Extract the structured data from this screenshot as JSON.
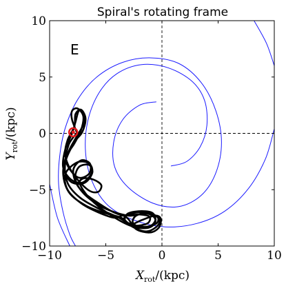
{
  "chart_data": {
    "type": "line",
    "title": "Spiral's rotating frame",
    "panel_label": "E",
    "xlabel": {
      "main": "X",
      "sub": "rot",
      "unit": "/(kpc)"
    },
    "ylabel": {
      "main": "Y",
      "sub": "rot",
      "unit": "/(kpc)"
    },
    "xlim": [
      -10,
      10
    ],
    "ylim": [
      -10,
      10
    ],
    "xticks": [
      -10,
      -5,
      0,
      5,
      10
    ],
    "yticks": [
      -10,
      -5,
      0,
      5,
      10
    ],
    "xtick_labels": [
      "−10",
      "−5",
      "0",
      "5",
      "10"
    ],
    "ytick_labels": [
      "−10",
      "−5",
      "0",
      "5",
      "10"
    ],
    "grid": false,
    "reference_lines": {
      "x": 0,
      "y": 0,
      "style": "dashed"
    },
    "colors": {
      "spiral": "#1a1aff",
      "orbit": "#000000",
      "marker": "#e41a1c"
    },
    "series": [
      {
        "kind": "spiral_arm",
        "points": [
          [
            -0.5,
            2.8
          ],
          [
            -2.0,
            2.5
          ],
          [
            -3.5,
            1.2
          ],
          [
            -4.3,
            -0.8
          ],
          [
            -4.2,
            -3.0
          ],
          [
            -3.0,
            -4.8
          ],
          [
            -0.8,
            -6.2
          ],
          [
            1.5,
            -6.5
          ],
          [
            3.5,
            -5.5
          ],
          [
            4.8,
            -3.5
          ],
          [
            5.3,
            -0.8
          ],
          [
            4.8,
            2.0
          ],
          [
            3.5,
            4.5
          ],
          [
            1.5,
            6.2
          ],
          [
            -1.0,
            6.7
          ],
          [
            -3.5,
            6.3
          ],
          [
            -5.8,
            5.0
          ],
          [
            -7.5,
            3.0
          ],
          [
            -8.6,
            0.5
          ],
          [
            -9.1,
            -2.0
          ],
          [
            -9.2,
            -4.5
          ],
          [
            -8.8,
            -7.0
          ],
          [
            -8.2,
            -9.0
          ],
          [
            -7.7,
            -10.0
          ]
        ]
      },
      {
        "kind": "spiral_arm",
        "points": [
          [
            0.8,
            -2.9
          ],
          [
            2.2,
            -2.5
          ],
          [
            3.4,
            -1.2
          ],
          [
            4.0,
            0.7
          ],
          [
            3.8,
            2.9
          ],
          [
            2.7,
            4.6
          ],
          [
            0.6,
            5.8
          ],
          [
            -1.8,
            6.1
          ],
          [
            -4.0,
            5.3
          ],
          [
            -5.6,
            3.6
          ],
          [
            -6.6,
            1.1
          ],
          [
            -6.8,
            -1.7
          ],
          [
            -6.2,
            -4.3
          ],
          [
            -4.8,
            -6.4
          ],
          [
            -2.5,
            -7.7
          ],
          [
            0.3,
            -8.3
          ],
          [
            3.1,
            -8.0
          ],
          [
            5.6,
            -6.9
          ],
          [
            7.7,
            -4.9
          ],
          [
            9.2,
            -2.3
          ],
          [
            10.0,
            0.4
          ]
        ]
      },
      {
        "kind": "spiral_arm",
        "points": [
          [
            8.2,
            10.0
          ],
          [
            9.3,
            8.0
          ],
          [
            10.0,
            6.0
          ]
        ]
      },
      {
        "kind": "spiral_arm",
        "points": [
          [
            -10.0,
            -4.5
          ],
          [
            -9.3,
            -7.5
          ],
          [
            -8.2,
            -10.0
          ]
        ]
      }
    ],
    "orbit": {
      "name": "",
      "path": [
        [
          -7.5,
          -0.1
        ],
        [
          -8.0,
          1.2
        ],
        [
          -8.0,
          2.0
        ],
        [
          -7.5,
          2.2
        ],
        [
          -7.0,
          1.5
        ],
        [
          -7.2,
          0.3
        ],
        [
          -7.8,
          -0.9
        ],
        [
          -8.5,
          -2.0
        ],
        [
          -8.7,
          -3.2
        ],
        [
          -8.1,
          -4.1
        ],
        [
          -7.2,
          -4.4
        ],
        [
          -6.5,
          -3.9
        ],
        [
          -6.2,
          -3.2
        ],
        [
          -6.6,
          -2.6
        ],
        [
          -7.6,
          -2.6
        ],
        [
          -8.6,
          -3.6
        ],
        [
          -8.4,
          -5.0
        ],
        [
          -7.2,
          -6.2
        ],
        [
          -5.7,
          -7.0
        ],
        [
          -4.2,
          -7.5
        ],
        [
          -3.5,
          -7.3
        ],
        [
          -3.0,
          -7.6
        ],
        [
          -2.3,
          -8.5
        ],
        [
          -1.1,
          -8.8
        ],
        [
          -0.3,
          -8.4
        ],
        [
          -0.1,
          -7.6
        ],
        [
          -0.6,
          -7.3
        ],
        [
          -1.8,
          -7.7
        ],
        [
          -2.8,
          -8.1
        ],
        [
          -3.3,
          -7.7
        ],
        [
          -3.0,
          -7.1
        ],
        [
          -1.8,
          -6.9
        ],
        [
          -0.8,
          -7.1
        ],
        [
          -0.6,
          -7.9
        ],
        [
          -1.3,
          -8.4
        ],
        [
          -2.8,
          -8.2
        ],
        [
          -4.8,
          -7.1
        ],
        [
          -6.4,
          -5.8
        ],
        [
          -7.3,
          -4.5
        ],
        [
          -7.0,
          -4.0
        ],
        [
          -6.1,
          -4.1
        ],
        [
          -5.4,
          -4.6
        ],
        [
          -5.7,
          -5.2
        ],
        [
          -6.6,
          -5.0
        ],
        [
          -7.9,
          -3.6
        ],
        [
          -8.6,
          -2.0
        ],
        [
          -8.4,
          -0.6
        ],
        [
          -7.8,
          0.6
        ],
        [
          -7.7,
          1.7
        ],
        [
          -7.2,
          2.1
        ],
        [
          -6.8,
          1.3
        ],
        [
          -7.1,
          0.1
        ],
        [
          -7.8,
          -0.8
        ],
        [
          -8.6,
          -2.6
        ],
        [
          -8.4,
          -4.4
        ],
        [
          -7.3,
          -5.7
        ],
        [
          -5.6,
          -6.7
        ],
        [
          -4.0,
          -7.4
        ],
        [
          -2.9,
          -8.0
        ],
        [
          -1.6,
          -8.3
        ],
        [
          -0.5,
          -8.0
        ],
        [
          -0.4,
          -7.4
        ],
        [
          -1.3,
          -7.1
        ],
        [
          -2.3,
          -7.3
        ],
        [
          -2.6,
          -7.9
        ],
        [
          -2.0,
          -8.3
        ],
        [
          -1.0,
          -8.2
        ],
        [
          -0.6,
          -7.6
        ],
        [
          -1.4,
          -7.1
        ],
        [
          -3.0,
          -7.3
        ],
        [
          -5.2,
          -6.6
        ],
        [
          -6.9,
          -5.4
        ],
        [
          -7.7,
          -4.1
        ],
        [
          -7.4,
          -3.0
        ],
        [
          -6.5,
          -2.8
        ],
        [
          -6.2,
          -3.5
        ],
        [
          -6.9,
          -4.4
        ],
        [
          -8.1,
          -4.3
        ],
        [
          -8.8,
          -3.0
        ],
        [
          -8.6,
          -1.4
        ],
        [
          -8.0,
          0.0
        ],
        [
          -7.7,
          1.0
        ],
        [
          -7.4,
          2.0
        ],
        [
          -7.0,
          1.8
        ],
        [
          -7.0,
          0.8
        ],
        [
          -7.6,
          -0.3
        ],
        [
          -8.3,
          -1.6
        ],
        [
          -8.8,
          -3.4
        ],
        [
          -8.3,
          -5.2
        ],
        [
          -6.8,
          -6.4
        ],
        [
          -5.0,
          -7.1
        ],
        [
          -3.6,
          -7.5
        ],
        [
          -2.6,
          -8.3
        ],
        [
          -1.4,
          -8.7
        ],
        [
          -0.5,
          -8.3
        ],
        [
          -0.2,
          -7.7
        ],
        [
          -0.8,
          -7.2
        ],
        [
          -2.0,
          -7.0
        ],
        [
          -3.2,
          -7.3
        ],
        [
          -3.3,
          -7.9
        ],
        [
          -2.5,
          -8.2
        ],
        [
          -1.3,
          -8.0
        ],
        [
          -1.1,
          -7.4
        ],
        [
          -2.0,
          -7.2
        ],
        [
          -3.8,
          -7.2
        ],
        [
          -5.8,
          -6.1
        ],
        [
          -7.4,
          -4.8
        ],
        [
          -7.9,
          -3.3
        ],
        [
          -7.2,
          -2.4
        ],
        [
          -6.4,
          -2.7
        ],
        [
          -6.5,
          -3.6
        ],
        [
          -7.5,
          -3.9
        ],
        [
          -8.5,
          -2.6
        ],
        [
          -8.3,
          -1.0
        ],
        [
          -7.6,
          0.0
        ]
      ]
    },
    "marker": {
      "shape": "circle",
      "x": -7.9,
      "y": 0.1
    }
  }
}
